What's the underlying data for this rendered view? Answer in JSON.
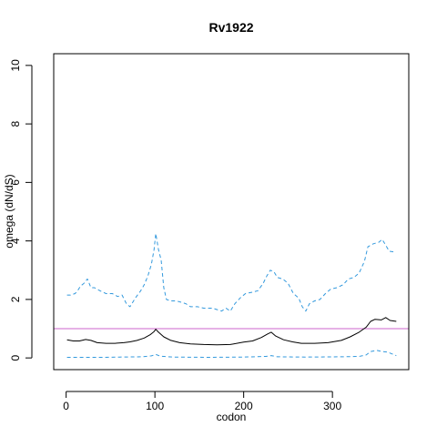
{
  "chart_data": {
    "type": "line",
    "title": "Rv1922",
    "xlabel": "codon",
    "ylabel": "omega (dN/dS)",
    "xlim": [
      -14,
      386
    ],
    "ylim": [
      -0.4,
      10.4
    ],
    "x_ticks": [
      0,
      100,
      200,
      300
    ],
    "y_ticks": [
      0,
      2,
      4,
      6,
      8,
      10
    ],
    "reference_line": {
      "y": 1,
      "color": "#CC66CC"
    },
    "grid": false,
    "legend": "none",
    "series": [
      {
        "role": "upper",
        "color": "#3399DD",
        "style": "dashed",
        "points": [
          [
            1,
            2.15
          ],
          [
            5,
            2.15
          ],
          [
            10,
            2.2
          ],
          [
            13,
            2.3
          ],
          [
            16,
            2.45
          ],
          [
            20,
            2.55
          ],
          [
            24,
            2.7
          ],
          [
            28,
            2.4
          ],
          [
            32,
            2.4
          ],
          [
            38,
            2.3
          ],
          [
            45,
            2.2
          ],
          [
            52,
            2.2
          ],
          [
            58,
            2.1
          ],
          [
            63,
            2.15
          ],
          [
            68,
            1.85
          ],
          [
            72,
            1.75
          ],
          [
            78,
            2.05
          ],
          [
            84,
            2.3
          ],
          [
            88,
            2.5
          ],
          [
            92,
            2.8
          ],
          [
            96,
            3.2
          ],
          [
            99,
            3.7
          ],
          [
            101,
            4.25
          ],
          [
            104,
            3.7
          ],
          [
            107,
            3.35
          ],
          [
            110,
            2.4
          ],
          [
            113,
            2.0
          ],
          [
            118,
            1.95
          ],
          [
            124,
            1.95
          ],
          [
            130,
            1.9
          ],
          [
            135,
            1.85
          ],
          [
            140,
            1.75
          ],
          [
            148,
            1.75
          ],
          [
            155,
            1.7
          ],
          [
            165,
            1.7
          ],
          [
            175,
            1.6
          ],
          [
            180,
            1.7
          ],
          [
            185,
            1.6
          ],
          [
            190,
            1.85
          ],
          [
            196,
            2.05
          ],
          [
            202,
            2.2
          ],
          [
            210,
            2.25
          ],
          [
            216,
            2.3
          ],
          [
            222,
            2.55
          ],
          [
            226,
            2.8
          ],
          [
            230,
            3.0
          ],
          [
            234,
            2.95
          ],
          [
            238,
            2.75
          ],
          [
            244,
            2.7
          ],
          [
            250,
            2.55
          ],
          [
            256,
            2.2
          ],
          [
            262,
            2.05
          ],
          [
            266,
            1.75
          ],
          [
            270,
            1.6
          ],
          [
            274,
            1.85
          ],
          [
            280,
            1.95
          ],
          [
            286,
            2.0
          ],
          [
            292,
            2.2
          ],
          [
            298,
            2.35
          ],
          [
            305,
            2.4
          ],
          [
            312,
            2.5
          ],
          [
            318,
            2.7
          ],
          [
            324,
            2.75
          ],
          [
            330,
            2.9
          ],
          [
            336,
            3.3
          ],
          [
            340,
            3.8
          ],
          [
            346,
            3.9
          ],
          [
            352,
            3.95
          ],
          [
            356,
            4.05
          ],
          [
            360,
            3.85
          ],
          [
            364,
            3.65
          ],
          [
            370,
            3.62
          ]
        ]
      },
      {
        "role": "estimate",
        "color": "#000000",
        "style": "solid",
        "points": [
          [
            1,
            0.62
          ],
          [
            8,
            0.58
          ],
          [
            15,
            0.58
          ],
          [
            22,
            0.63
          ],
          [
            28,
            0.6
          ],
          [
            35,
            0.52
          ],
          [
            45,
            0.5
          ],
          [
            55,
            0.5
          ],
          [
            65,
            0.52
          ],
          [
            72,
            0.55
          ],
          [
            80,
            0.6
          ],
          [
            88,
            0.68
          ],
          [
            95,
            0.8
          ],
          [
            99,
            0.9
          ],
          [
            101,
            0.98
          ],
          [
            104,
            0.88
          ],
          [
            110,
            0.72
          ],
          [
            118,
            0.6
          ],
          [
            128,
            0.52
          ],
          [
            140,
            0.48
          ],
          [
            155,
            0.46
          ],
          [
            170,
            0.45
          ],
          [
            185,
            0.46
          ],
          [
            200,
            0.54
          ],
          [
            210,
            0.58
          ],
          [
            220,
            0.7
          ],
          [
            227,
            0.82
          ],
          [
            231,
            0.88
          ],
          [
            236,
            0.75
          ],
          [
            245,
            0.62
          ],
          [
            255,
            0.55
          ],
          [
            265,
            0.5
          ],
          [
            280,
            0.5
          ],
          [
            295,
            0.52
          ],
          [
            310,
            0.6
          ],
          [
            320,
            0.72
          ],
          [
            330,
            0.88
          ],
          [
            338,
            1.05
          ],
          [
            343,
            1.25
          ],
          [
            348,
            1.32
          ],
          [
            355,
            1.3
          ],
          [
            360,
            1.38
          ],
          [
            365,
            1.28
          ],
          [
            372,
            1.25
          ]
        ]
      },
      {
        "role": "lower",
        "color": "#3399DD",
        "style": "dashed",
        "points": [
          [
            1,
            0.02
          ],
          [
            20,
            0.02
          ],
          [
            40,
            0.02
          ],
          [
            60,
            0.03
          ],
          [
            85,
            0.04
          ],
          [
            96,
            0.07
          ],
          [
            101,
            0.12
          ],
          [
            106,
            0.06
          ],
          [
            120,
            0.03
          ],
          [
            160,
            0.02
          ],
          [
            200,
            0.03
          ],
          [
            225,
            0.05
          ],
          [
            231,
            0.08
          ],
          [
            238,
            0.04
          ],
          [
            270,
            0.03
          ],
          [
            310,
            0.04
          ],
          [
            330,
            0.05
          ],
          [
            338,
            0.1
          ],
          [
            343,
            0.22
          ],
          [
            350,
            0.26
          ],
          [
            356,
            0.22
          ],
          [
            362,
            0.2
          ],
          [
            366,
            0.15
          ],
          [
            372,
            0.08
          ]
        ]
      }
    ]
  }
}
